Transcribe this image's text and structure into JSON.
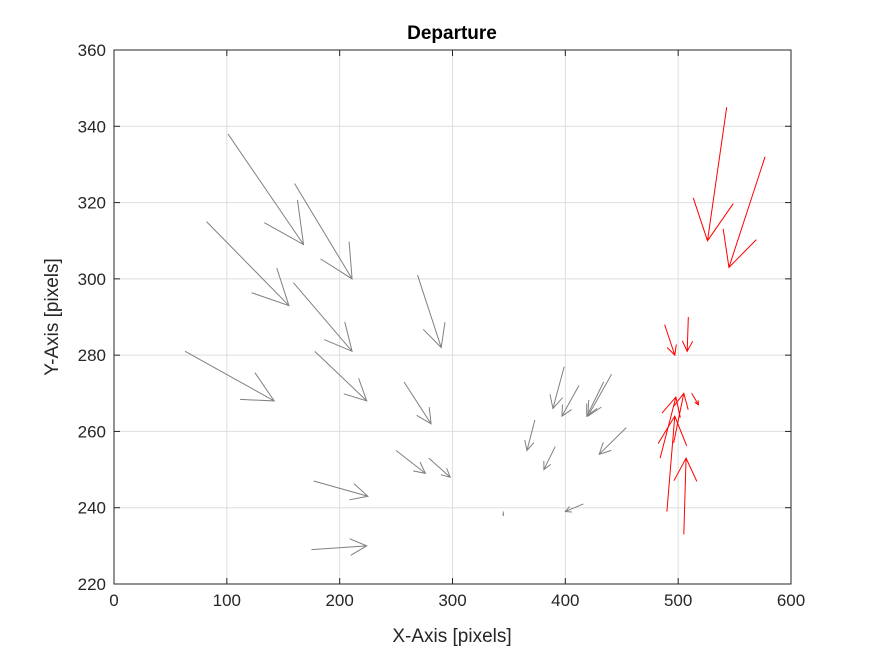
{
  "chart_data": {
    "type": "quiver",
    "title": "Departure",
    "xlabel": "X-Axis [pixels]",
    "ylabel": "Y-Axis [pixels]",
    "xlim": [
      0,
      600
    ],
    "ylim": [
      220,
      360
    ],
    "xticks": [
      "0",
      "100",
      "200",
      "300",
      "400",
      "500",
      "600"
    ],
    "yticks": [
      "220",
      "240",
      "260",
      "280",
      "300",
      "320",
      "340",
      "360"
    ],
    "grid": true,
    "colors": {
      "gray": "#808080",
      "red": "#ff0000",
      "axis": "#262626",
      "grid": "#dedede"
    },
    "series": [
      {
        "color": "gray",
        "vectors": [
          {
            "x": 101,
            "y": 338,
            "x2": 168,
            "y2": 309
          },
          {
            "x": 82,
            "y": 315,
            "x2": 155,
            "y2": 293
          },
          {
            "x": 160,
            "y": 325,
            "x2": 211,
            "y2": 300
          },
          {
            "x": 159,
            "y": 299,
            "x2": 211,
            "y2": 281
          },
          {
            "x": 63,
            "y": 281,
            "x2": 142,
            "y2": 268
          },
          {
            "x": 178,
            "y": 281,
            "x2": 224,
            "y2": 268
          },
          {
            "x": 269,
            "y": 301,
            "x2": 290,
            "y2": 282
          },
          {
            "x": 257,
            "y": 273,
            "x2": 281,
            "y2": 262
          },
          {
            "x": 250,
            "y": 255,
            "x2": 276,
            "y2": 249
          },
          {
            "x": 279,
            "y": 253,
            "x2": 298,
            "y2": 248
          },
          {
            "x": 177,
            "y": 247,
            "x2": 225,
            "y2": 243
          },
          {
            "x": 175,
            "y": 229,
            "x2": 224,
            "y2": 230
          },
          {
            "x": 345,
            "y": 239,
            "x2": 345,
            "y2": 238
          },
          {
            "x": 373,
            "y": 263,
            "x2": 366,
            "y2": 255
          },
          {
            "x": 391,
            "y": 256,
            "x2": 381,
            "y2": 250
          },
          {
            "x": 399,
            "y": 277,
            "x2": 389,
            "y2": 266
          },
          {
            "x": 412,
            "y": 272,
            "x2": 397,
            "y2": 264
          },
          {
            "x": 434,
            "y": 273,
            "x2": 419,
            "y2": 264
          },
          {
            "x": 441,
            "y": 275,
            "x2": 420,
            "y2": 264
          },
          {
            "x": 454,
            "y": 261,
            "x2": 430,
            "y2": 254
          },
          {
            "x": 416,
            "y": 241,
            "x2": 400,
            "y2": 239
          }
        ]
      },
      {
        "color": "red",
        "vectors": [
          {
            "x": 543,
            "y": 345,
            "x2": 526,
            "y2": 310
          },
          {
            "x": 577,
            "y": 332,
            "x2": 545,
            "y2": 303
          },
          {
            "x": 488,
            "y": 288,
            "x2": 497,
            "y2": 280
          },
          {
            "x": 509,
            "y": 290,
            "x2": 508,
            "y2": 281
          },
          {
            "x": 484,
            "y": 253,
            "x2": 498,
            "y2": 269
          },
          {
            "x": 490,
            "y": 239,
            "x2": 497,
            "y2": 264
          },
          {
            "x": 496,
            "y": 257,
            "x2": 505,
            "y2": 270
          },
          {
            "x": 512,
            "y": 270,
            "x2": 518,
            "y2": 267
          },
          {
            "x": 505,
            "y": 233,
            "x2": 507,
            "y2": 253
          }
        ]
      }
    ]
  }
}
